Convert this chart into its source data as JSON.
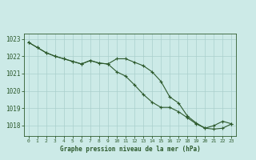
{
  "title": "Graphe pression niveau de la mer (hPa)",
  "bg_color": "#cceae7",
  "grid_color": "#aacfcc",
  "line_color": "#2d5a2d",
  "marker_color": "#2d5a2d",
  "x_ticks": [
    0,
    1,
    2,
    3,
    4,
    5,
    6,
    7,
    8,
    9,
    10,
    11,
    12,
    13,
    14,
    15,
    16,
    17,
    18,
    19,
    20,
    21,
    22,
    23
  ],
  "ylim": [
    1017.4,
    1023.3
  ],
  "yticks": [
    1018,
    1019,
    1020,
    1021,
    1022,
    1023
  ],
  "series1": [
    1022.8,
    1022.5,
    1022.2,
    1022.0,
    1021.85,
    1021.7,
    1021.55,
    1021.75,
    1021.6,
    1021.55,
    1021.85,
    1021.85,
    1021.65,
    1021.45,
    1021.1,
    1020.55,
    1019.65,
    1019.3,
    1018.55,
    1018.15,
    1017.85,
    1018.0,
    1018.25,
    1018.1
  ],
  "series2": [
    1022.8,
    1022.5,
    1022.2,
    1022.0,
    1021.85,
    1021.7,
    1021.55,
    1021.75,
    1021.6,
    1021.55,
    1021.1,
    1020.85,
    1020.35,
    1019.8,
    1019.35,
    1019.05,
    1019.05,
    1018.8,
    1018.45,
    1018.1,
    1017.85,
    1017.8,
    1017.85,
    1018.1
  ]
}
